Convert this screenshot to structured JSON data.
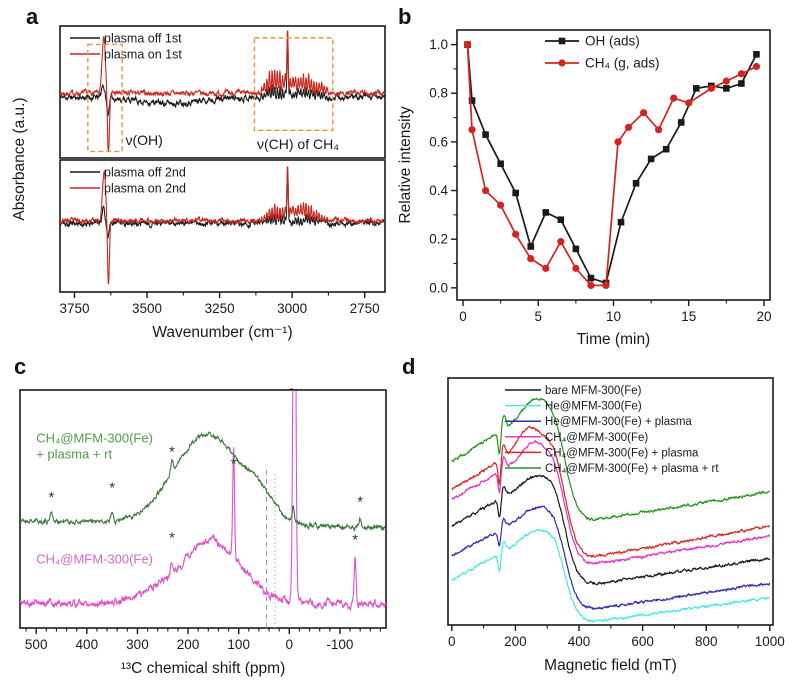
{
  "figure": {
    "panel_labels": [
      "a",
      "b",
      "c",
      "d"
    ]
  },
  "chart_data": [
    {
      "panel": "a",
      "type": "line",
      "kind": "ir",
      "xlabel": "Wavenumber (cm⁻¹)",
      "ylabel": "Absorbance (a.u.)",
      "x_range": [
        3800,
        2680
      ],
      "x_ticks": [
        3750,
        3500,
        3250,
        3000,
        2750
      ],
      "x_minor_step": 125,
      "box_color": "#e59a3c",
      "subplots": [
        {
          "legend": [
            {
              "label": "plasma off 1st",
              "color": "#1a1a1a"
            },
            {
              "label": "plasma on 1st",
              "color": "#c8281e"
            }
          ],
          "traces": [
            {
              "name": "plasma off 1st",
              "color": "#1a1a1a",
              "seed": 11,
              "noise": 0.03,
              "base": 0.46,
              "features": [
                {
                  "t": "g",
                  "c": 3652,
                  "w": 7,
                  "a": 0.1
                },
                {
                  "t": "g",
                  "c": 3635,
                  "w": 5,
                  "a": -0.13
                },
                {
                  "t": "g",
                  "c": 3430,
                  "w": 140,
                  "a": -0.045
                },
                {
                  "t": "g",
                  "c": 3016,
                  "w": 3,
                  "a": 0.46
                },
                {
                  "t": "comb",
                  "from": 3108,
                  "to": 2880,
                  "step": 9,
                  "w": 2.2,
                  "env": [
                    {
                      "c": 3062,
                      "w": 40,
                      "a": 0.09
                    },
                    {
                      "c": 2952,
                      "w": 55,
                      "a": 0.07
                    }
                  ]
                }
              ]
            },
            {
              "name": "plasma on 1st",
              "color": "#c8281e",
              "seed": 7,
              "noise": 0.026,
              "base": 0.49,
              "features": [
                {
                  "t": "g",
                  "c": 3649,
                  "w": 8,
                  "a": 0.42
                },
                {
                  "t": "g",
                  "c": 3633,
                  "w": 4.5,
                  "a": -0.45
                },
                {
                  "t": "g",
                  "c": 3016,
                  "w": 3,
                  "a": 0.38
                },
                {
                  "t": "g",
                  "c": 3005,
                  "w": 70,
                  "a": 0.04
                },
                {
                  "t": "comb",
                  "from": 3110,
                  "to": 2880,
                  "step": 9,
                  "w": 2.2,
                  "env": [
                    {
                      "c": 3062,
                      "w": 42,
                      "a": 0.16
                    },
                    {
                      "c": 2950,
                      "w": 60,
                      "a": 0.12
                    }
                  ]
                }
              ]
            }
          ],
          "annotations": {
            "boxes": [
              {
                "x1": 3704,
                "x2": 3586,
                "fy1": 0.05,
                "fy2": 0.86
              },
              {
                "x1": 3130,
                "x2": 2860,
                "fy1": 0.21,
                "fy2": 0.91
              }
            ],
            "labels": [
              {
                "text": "ν(OH)",
                "x": 3510,
                "fy": 0.1
              },
              {
                "text": "ν(CH) of CH₄",
                "x": 2980,
                "fy": 0.07
              }
            ]
          }
        },
        {
          "legend": [
            {
              "label": "plasma off 2nd",
              "color": "#1a1a1a"
            },
            {
              "label": "plasma on 2nd",
              "color": "#c8281e"
            }
          ],
          "traces": [
            {
              "name": "plasma off 2nd",
              "color": "#1a1a1a",
              "seed": 19,
              "noise": 0.028,
              "base": 0.52,
              "features": [
                {
                  "t": "g",
                  "c": 3650,
                  "w": 6,
                  "a": 0.12
                },
                {
                  "t": "g",
                  "c": 3634,
                  "w": 5,
                  "a": -0.09
                },
                {
                  "t": "g",
                  "c": 3016,
                  "w": 3,
                  "a": 0.42
                },
                {
                  "t": "comb",
                  "from": 3108,
                  "to": 2880,
                  "step": 9,
                  "w": 2.2,
                  "env": [
                    {
                      "c": 3060,
                      "w": 40,
                      "a": 0.07
                    },
                    {
                      "c": 2950,
                      "w": 55,
                      "a": 0.06
                    }
                  ]
                }
              ]
            },
            {
              "name": "plasma on 2nd",
              "color": "#c8281e",
              "seed": 23,
              "noise": 0.024,
              "base": 0.54,
              "features": [
                {
                  "t": "g",
                  "c": 3648,
                  "w": 8,
                  "a": 0.38
                },
                {
                  "t": "g",
                  "c": 3633,
                  "w": 4.5,
                  "a": -0.5
                },
                {
                  "t": "g",
                  "c": 3016,
                  "w": 3,
                  "a": 0.34
                },
                {
                  "t": "g",
                  "c": 2990,
                  "w": 60,
                  "a": 0.04
                },
                {
                  "t": "comb",
                  "from": 3110,
                  "to": 2880,
                  "step": 9,
                  "w": 2.2,
                  "env": [
                    {
                      "c": 3060,
                      "w": 42,
                      "a": 0.1
                    },
                    {
                      "c": 2950,
                      "w": 60,
                      "a": 0.09
                    }
                  ]
                }
              ]
            }
          ]
        }
      ]
    },
    {
      "panel": "b",
      "type": "scatter",
      "kind": "xy",
      "xlabel": "Time (min)",
      "ylabel": "Relative intensity",
      "xlim": [
        -0.4,
        20.4
      ],
      "ylim": [
        -0.05,
        1.06
      ],
      "x_ticks": [
        0,
        5,
        10,
        15,
        20
      ],
      "x_minor_step": 2.5,
      "y_ticks": [
        0.0,
        0.2,
        0.4,
        0.6,
        0.8,
        1.0
      ],
      "y_minor_step": 0.1,
      "legend": [
        {
          "label": "OH (ads)",
          "color": "#1a1a1a",
          "marker": "square"
        },
        {
          "label": "CH₄ (g, ads)",
          "color": "#d42420",
          "marker": "circle"
        }
      ],
      "series": [
        {
          "name": "OH (ads)",
          "color": "#1a1a1a",
          "marker": "square",
          "points": [
            [
              0.3,
              1.0
            ],
            [
              0.6,
              0.77
            ],
            [
              1.5,
              0.63
            ],
            [
              2.5,
              0.51
            ],
            [
              3.5,
              0.39
            ],
            [
              4.5,
              0.17
            ],
            [
              5.5,
              0.31
            ],
            [
              6.5,
              0.28
            ],
            [
              7.5,
              0.16
            ],
            [
              8.5,
              0.04
            ],
            [
              9.5,
              0.02
            ],
            [
              10.5,
              0.27
            ],
            [
              11.5,
              0.43
            ],
            [
              12.5,
              0.53
            ],
            [
              13.5,
              0.57
            ],
            [
              14.5,
              0.68
            ],
            [
              15.5,
              0.82
            ],
            [
              16.5,
              0.83
            ],
            [
              17.5,
              0.82
            ],
            [
              18.5,
              0.84
            ],
            [
              19.5,
              0.96
            ]
          ]
        },
        {
          "name": "CH₄ (g, ads)",
          "color": "#d42420",
          "marker": "circle",
          "points": [
            [
              0.3,
              1.0
            ],
            [
              0.6,
              0.65
            ],
            [
              1.5,
              0.4
            ],
            [
              2.5,
              0.34
            ],
            [
              3.5,
              0.22
            ],
            [
              4.5,
              0.12
            ],
            [
              5.5,
              0.08
            ],
            [
              6.5,
              0.19
            ],
            [
              7.5,
              0.08
            ],
            [
              8.5,
              0.01
            ],
            [
              9.5,
              0.01
            ],
            [
              10.3,
              0.6
            ],
            [
              11.0,
              0.66
            ],
            [
              12.0,
              0.72
            ],
            [
              13.0,
              0.65
            ],
            [
              14.0,
              0.78
            ],
            [
              15.0,
              0.76
            ],
            [
              16.5,
              0.82
            ],
            [
              17.5,
              0.85
            ],
            [
              18.5,
              0.88
            ],
            [
              19.5,
              0.91
            ]
          ]
        }
      ]
    },
    {
      "panel": "c",
      "type": "line",
      "kind": "nmr",
      "xlabel": "¹³C chemical shift (ppm)",
      "x_range": [
        532,
        -191
      ],
      "x_ticks": [
        500,
        400,
        300,
        200,
        100,
        0,
        -100
      ],
      "x_minor_step": 20,
      "traces": [
        {
          "name": "CH₄@MFM-300(Fe)",
          "color": "#e052c8",
          "seed": 5,
          "noise": 0.022,
          "base": 0.105,
          "features": [
            {
              "t": "g",
              "c": 155,
              "w": 85,
              "a": 0.26
            },
            {
              "t": "g",
              "c": 280,
              "w": 40,
              "a": 0.03
            },
            {
              "t": "g",
              "c": 232,
              "w": 3,
              "a": 0.05
            },
            {
              "t": "g",
              "c": 110,
              "w": 2.5,
              "a": 0.46
            },
            {
              "t": "g",
              "c": -10,
              "w": 3.5,
              "a": 2.2
            },
            {
              "t": "g",
              "c": -130,
              "w": 2.5,
              "a": 0.2
            }
          ]
        },
        {
          "name": "CH₄@MFM-300(Fe) + plasma + rt",
          "color": "#3c7a3a",
          "seed": 21,
          "noise": 0.013,
          "base": 0.45,
          "slope": -0.03,
          "features": [
            {
              "t": "g",
              "c": 160,
              "w": 95,
              "a": 0.38
            },
            {
              "t": "g",
              "c": 55,
              "w": 35,
              "a": 0.07
            },
            {
              "t": "g",
              "c": 470,
              "w": 3.5,
              "a": 0.045
            },
            {
              "t": "g",
              "c": 350,
              "w": 3.5,
              "a": 0.05
            },
            {
              "t": "g",
              "c": 232,
              "w": 3.5,
              "a": 0.05
            },
            {
              "t": "g",
              "c": -8,
              "w": 3,
              "a": 0.06
            },
            {
              "t": "g",
              "c": -140,
              "w": 3,
              "a": 0.035
            }
          ]
        }
      ],
      "trace_labels": [
        {
          "lines": [
            "CH₄@MFM-300(Fe)",
            "+ plasma + rt"
          ],
          "color": "#4f9e46",
          "x": 500,
          "fy": 0.78
        },
        {
          "lines": [
            "CH₄@MFM-300(Fe)"
          ],
          "color": "#d966cc",
          "x": 500,
          "fy": 0.27
        }
      ],
      "asterisks": [
        {
          "x": 470,
          "fy": 0.53
        },
        {
          "x": 350,
          "fy": 0.57
        },
        {
          "x": 232,
          "fy": 0.72
        },
        {
          "x": -140,
          "fy": 0.51
        },
        {
          "x": 232,
          "fy": 0.36
        },
        {
          "x": 110,
          "fy": 0.67
        },
        {
          "x": -130,
          "fy": 0.35
        }
      ],
      "tilde": {
        "symbol": "~",
        "x": -8
      },
      "vlines": [
        {
          "x": 45,
          "style": "dashed",
          "fy2": 0.67
        },
        {
          "x": 28,
          "style": "dotted",
          "fy2": 0.65
        }
      ]
    },
    {
      "panel": "d",
      "type": "line",
      "kind": "epr",
      "xlabel": "Magnetic field (mT)",
      "x_range": [
        -12,
        1010
      ],
      "x_ticks": [
        0,
        200,
        400,
        600,
        800,
        1000
      ],
      "x_minor_step": 100,
      "legend": [
        {
          "label": "bare MFM-300(Fe)",
          "color": "#1a1a1a"
        },
        {
          "label": "He@MFM-300(Fe)",
          "color": "#49e8e0"
        },
        {
          "label": "He@MFM-300(Fe) + plasma",
          "color": "#2b2bb5"
        },
        {
          "label": "CH₄@MFM-300(Fe)",
          "color": "#e032cc"
        },
        {
          "label": "CH₄@MFM-300(Fe) + plasma",
          "color": "#d42a22"
        },
        {
          "label": "CH₄@MFM-300(Fe) + plasma + rt",
          "color": "#22951f"
        }
      ],
      "traces": [
        {
          "name": "He@MFM-300(Fe)",
          "color": "#49e8e0",
          "seed": 31,
          "o": 0.18,
          "rise": 0.23,
          "drop": 0.4,
          "rec": 0.1,
          "hump2": 0.02,
          "hump2c": 250,
          "glitch": 0.07
        },
        {
          "name": "He@MFM-300(Fe) + plasma",
          "color": "#2b2bb5",
          "seed": 32,
          "o": 0.28,
          "rise": 0.22,
          "drop": 0.44,
          "rec": 0.11,
          "hump2": 0.02,
          "hump2c": 250,
          "glitch": 0.07
        },
        {
          "name": "bare MFM-300(Fe)",
          "color": "#1a1a1a",
          "seed": 33,
          "o": 0.4,
          "rise": 0.23,
          "drop": 0.47,
          "rec": 0.11,
          "hump2": 0.02,
          "hump2c": 250,
          "glitch": 0.08
        },
        {
          "name": "CH₄@MFM-300(Fe)",
          "color": "#e032cc",
          "seed": 34,
          "o": 0.51,
          "rise": 0.23,
          "drop": 0.5,
          "rec": 0.12,
          "hump2": 0.05,
          "hump2c": 250,
          "glitch": 0.09
        },
        {
          "name": "CH₄@MFM-300(Fe) + plasma",
          "color": "#d42a22",
          "seed": 35,
          "o": 0.55,
          "rise": 0.24,
          "drop": 0.52,
          "rec": 0.13,
          "hump2": 0.07,
          "hump2c": 238,
          "glitch": 0.1
        },
        {
          "name": "CH₄@MFM-300(Fe) + plasma + rt",
          "color": "#22951f",
          "seed": 36,
          "o": 0.66,
          "rise": 0.26,
          "drop": 0.5,
          "rec": 0.12,
          "hump2": 0.05,
          "hump2c": 255,
          "glitch": 0.1
        }
      ]
    }
  ]
}
